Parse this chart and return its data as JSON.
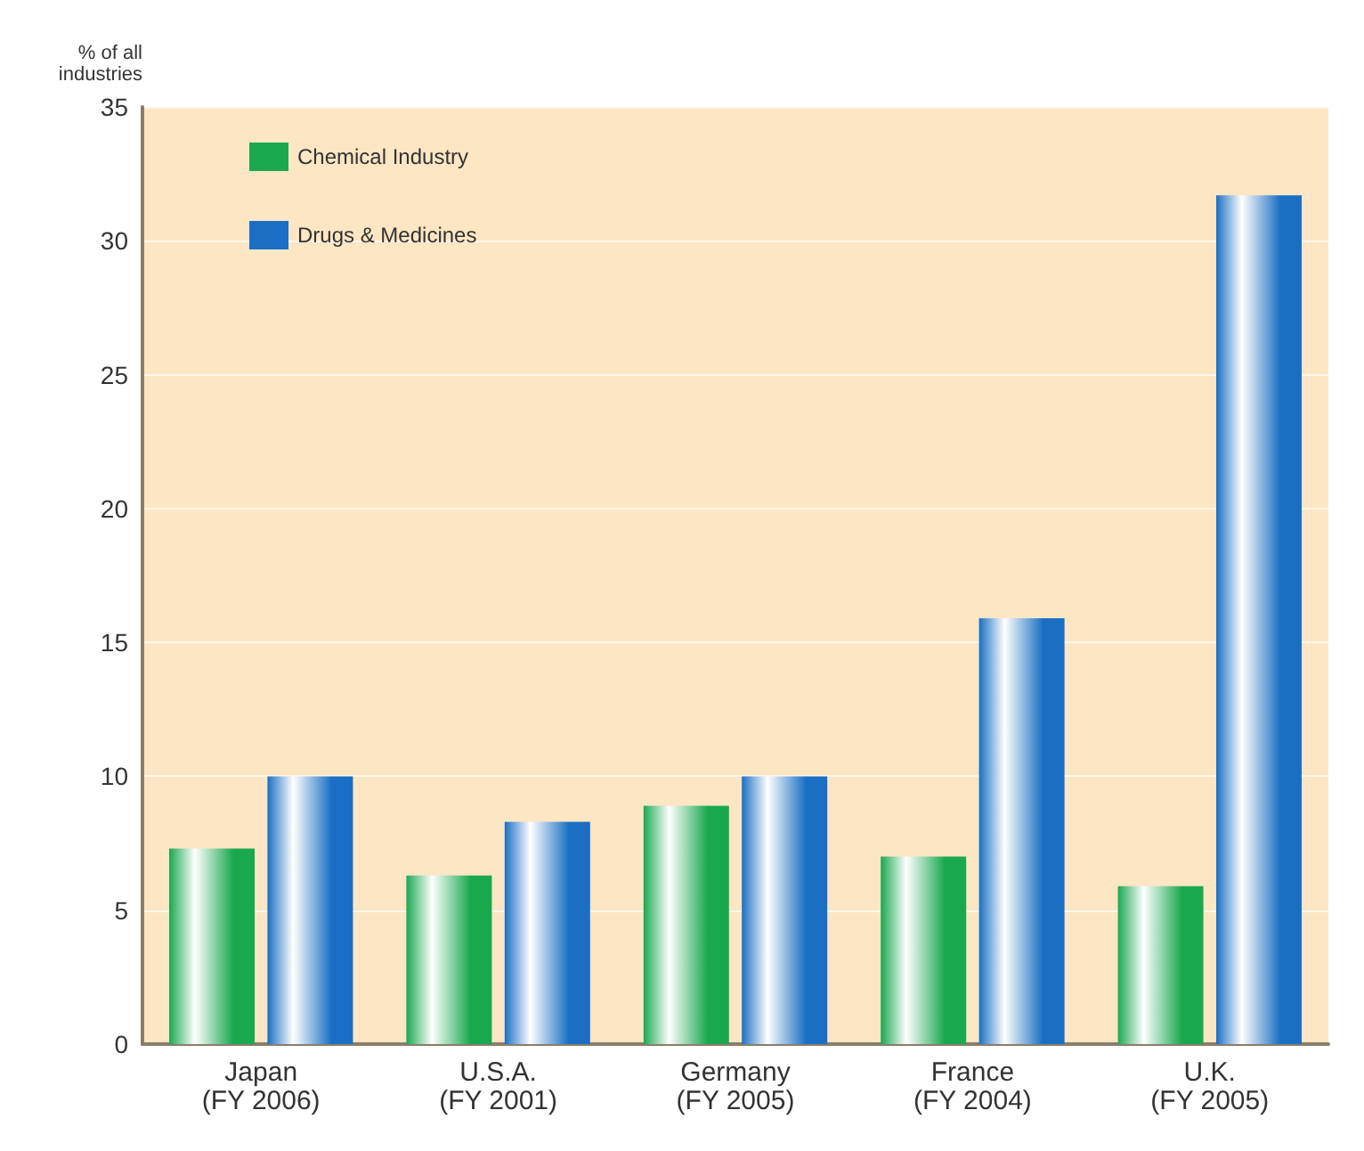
{
  "chart_data": {
    "type": "bar",
    "ylabel": "% of all\nindustries",
    "categories": [
      "Japan\n(FY 2006)",
      "U.S.A.\n(FY 2001)",
      "Germany\n(FY 2005)",
      "France\n(FY 2004)",
      "U.K.\n(FY 2005)"
    ],
    "series": [
      {
        "name": "Chemical Industry",
        "color": "#1aa84f",
        "values": [
          7.3,
          6.3,
          8.9,
          7.0,
          5.9
        ]
      },
      {
        "name": "Drugs & Medicines",
        "color": "#1a6fc4",
        "values": [
          10.0,
          8.3,
          10.0,
          15.9,
          31.7
        ]
      }
    ],
    "ylim": [
      0,
      35
    ],
    "yticks": [
      0,
      5,
      10,
      15,
      20,
      25,
      30,
      35
    ],
    "grid": "y",
    "legend": "top left"
  }
}
